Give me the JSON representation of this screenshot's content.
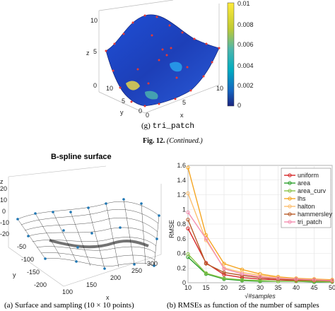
{
  "top_panel": {
    "z_label": "z",
    "y_label": "y",
    "x_label": "x",
    "z_ticks": [
      "10",
      "5",
      "0"
    ],
    "y_ticks": [
      "10",
      "5",
      "0"
    ],
    "x_ticks": [
      "0",
      "5",
      "10"
    ],
    "colorbar_ticks": [
      "0.01",
      "0.008",
      "0.006",
      "0.004",
      "0.002",
      "0"
    ],
    "caption_label": "(g)",
    "caption_method": "tri_patch"
  },
  "figure_caption": {
    "label": "Fig. 12.",
    "text": "(Continued.)"
  },
  "surface_panel": {
    "title": "B-spline surface",
    "z_label": "z",
    "y_label": "y",
    "x_label": "x",
    "z_ticks": [
      "20",
      "10",
      "0",
      "-10",
      "-20"
    ],
    "y_ticks": [
      "-50",
      "-100",
      "-150",
      "-200"
    ],
    "x_ticks": [
      "100",
      "150",
      "200",
      "250",
      "300"
    ],
    "caption": "(a) Surface and sampling (10 × 10 points)"
  },
  "rmse_panel": {
    "caption": "(b) RMSEs as function of the number of samples"
  },
  "chart_data": {
    "type": "line",
    "xlabel": "√#samples",
    "ylabel": "RMSE",
    "xlim": [
      10,
      50
    ],
    "ylim": [
      0,
      1.6
    ],
    "x_ticks": [
      10,
      15,
      20,
      25,
      30,
      35,
      40,
      45,
      50
    ],
    "y_ticks": [
      0,
      0.2,
      0.4,
      0.6,
      0.8,
      1,
      1.2,
      1.4,
      1.6
    ],
    "grid": true,
    "legend_position": "top-right",
    "x": [
      10,
      15,
      20,
      25,
      30,
      35,
      40,
      45,
      50
    ],
    "series": [
      {
        "name": "uniform",
        "color": "#d62728",
        "values": [
          0.74,
          0.27,
          0.11,
          0.07,
          0.05,
          0.04,
          0.03,
          0.03,
          0.02
        ]
      },
      {
        "name": "area",
        "color": "#2ca02c",
        "values": [
          0.35,
          0.12,
          0.05,
          0.03,
          0.02,
          0.02,
          0.02,
          0.01,
          0.01
        ]
      },
      {
        "name": "area_curv",
        "color": "#8bc34a",
        "values": [
          0.39,
          0.13,
          0.06,
          0.04,
          0.03,
          0.02,
          0.02,
          0.02,
          0.01
        ]
      },
      {
        "name": "lhs",
        "color": "#f5a623",
        "values": [
          1.57,
          0.65,
          0.26,
          0.18,
          0.12,
          0.08,
          0.06,
          0.05,
          0.04
        ]
      },
      {
        "name": "halton",
        "color": "#fdbf6f",
        "values": [
          1.22,
          0.58,
          0.2,
          0.14,
          0.1,
          0.07,
          0.05,
          0.04,
          0.03
        ]
      },
      {
        "name": "hammersley",
        "color": "#b85c2a",
        "values": [
          0.86,
          0.26,
          0.14,
          0.1,
          0.07,
          0.05,
          0.04,
          0.03,
          0.03
        ]
      },
      {
        "name": "tri_patch",
        "color": "#f48fb1",
        "values": [
          0.96,
          0.6,
          0.19,
          0.12,
          0.08,
          0.06,
          0.05,
          0.04,
          0.03
        ]
      }
    ]
  }
}
